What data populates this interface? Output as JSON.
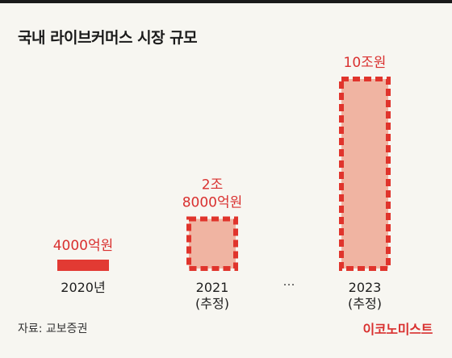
{
  "header": {
    "title": "국내 라이브커머스 시장 규모"
  },
  "chart_data": {
    "type": "bar",
    "categories": [
      "2020년",
      "2021\n(추정)",
      "2023\n(추정)"
    ],
    "values": [
      4000,
      28000,
      100000
    ],
    "value_labels": [
      "4000억원",
      "2조\n8000억원",
      "10조원"
    ],
    "unit": "억원",
    "gap_marker": "…",
    "ylim": [
      0,
      100000
    ]
  },
  "footer": {
    "source": "자료: 교보증권",
    "brand": "이코노미스트"
  },
  "colors": {
    "solid_bar": "#e23a33",
    "estimate_fill": "#f0b4a2",
    "estimate_border": "#e0342c",
    "value_label": "#d9302f",
    "background": "#f7f6f1"
  }
}
